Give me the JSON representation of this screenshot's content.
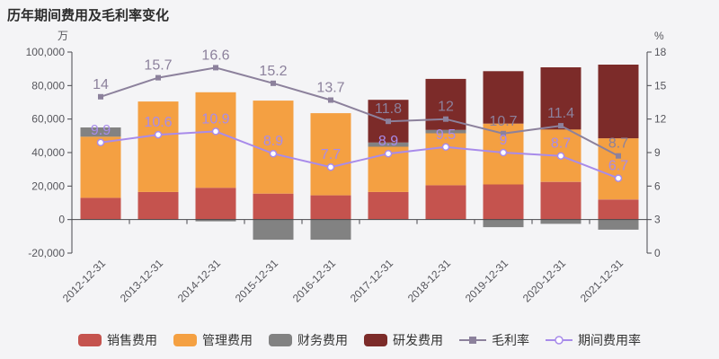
{
  "chart_data": {
    "type": "bar-line-combo",
    "title": "历年期间费用及毛利率变化",
    "categories": [
      "2012-12-31",
      "2013-12-31",
      "2014-12-31",
      "2015-12-31",
      "2016-12-31",
      "2017-12-31",
      "2018-12-31",
      "2019-12-31",
      "2020-12-31",
      "2021-12-31"
    ],
    "series": [
      {
        "id": "sales-expense",
        "name": "销售费用",
        "type": "bar",
        "color": "#c5534e",
        "values": [
          13000,
          16500,
          19000,
          15500,
          14500,
          16500,
          20500,
          21000,
          22500,
          12000
        ]
      },
      {
        "id": "management-expense",
        "name": "管理费用",
        "type": "bar",
        "color": "#f4a042",
        "values": [
          36500,
          54000,
          57000,
          55500,
          49000,
          27000,
          31000,
          36300,
          31300,
          36500
        ]
      },
      {
        "id": "financial-expense",
        "name": "财务费用",
        "type": "bar",
        "color": "#828282",
        "values": [
          5500,
          0,
          -1000,
          -12000,
          -12000,
          2500,
          2000,
          -4500,
          -2500,
          -6000
        ]
      },
      {
        "id": "rd-expense",
        "name": "研发费用",
        "type": "bar",
        "color": "#7c2b29",
        "values": [
          0,
          0,
          0,
          0,
          0,
          25500,
          30500,
          31300,
          37100,
          44000
        ]
      },
      {
        "id": "gross-margin",
        "name": "毛利率",
        "type": "line",
        "axis": "right",
        "marker": "square",
        "color": "#8c819c",
        "values": [
          14,
          15.7,
          16.6,
          15.2,
          13.7,
          11.8,
          12,
          10.7,
          11.4,
          8.7
        ]
      },
      {
        "id": "period-expense-ratio",
        "name": "期间费用率",
        "type": "line",
        "axis": "right",
        "marker": "circle-hollow",
        "color": "#a88bea",
        "values": [
          9.9,
          10.6,
          10.9,
          8.9,
          7.7,
          8.9,
          9.5,
          9,
          8.7,
          6.7
        ]
      }
    ],
    "left_axis": {
      "unit": "万",
      "min": -20000,
      "max": 100000,
      "tick_labels": [
        "100,000",
        "80,000",
        "60,000",
        "40,000",
        "20,000",
        "0",
        "-20,000"
      ]
    },
    "right_axis": {
      "unit": "%",
      "min": 0,
      "max": 18,
      "tick_labels": [
        "18",
        "15",
        "12",
        "9",
        "6",
        "3",
        "0"
      ]
    },
    "legend_position": "bottom",
    "grid": false
  }
}
